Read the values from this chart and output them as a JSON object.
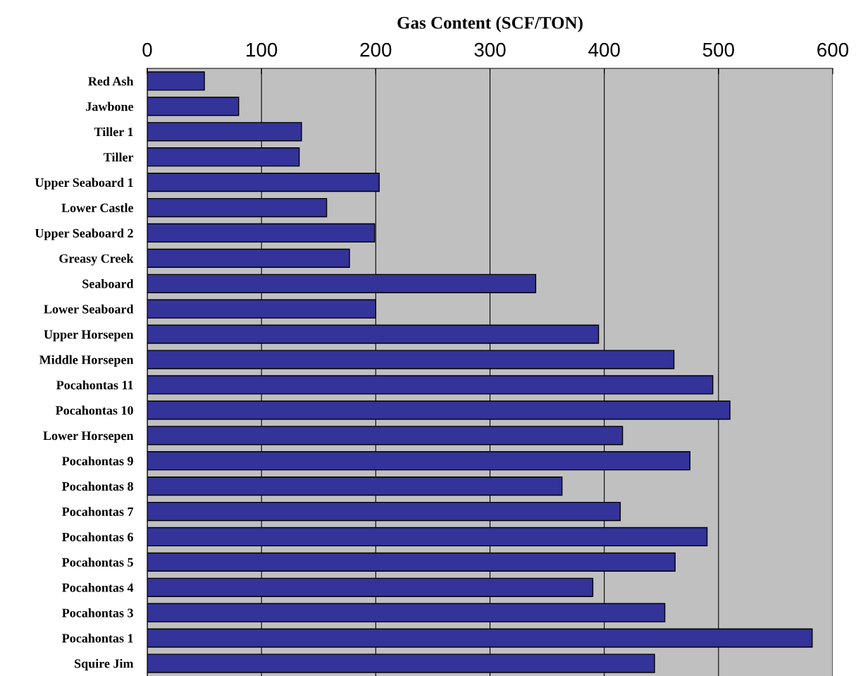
{
  "chart_data": {
    "type": "bar",
    "orientation": "horizontal",
    "xlabel": "Gas Content (SCF/TON)",
    "categories": [
      "Red Ash",
      "Jawbone",
      "Tiller 1",
      "Tiller",
      "Upper Seaboard 1",
      "Lower Castle",
      "Upper Seaboard 2",
      "Greasy Creek",
      "Seaboard",
      "Lower Seaboard",
      "Upper Horsepen",
      "Middle Horsepen",
      "Pocahontas 11",
      "Pocahontas 10",
      "Lower Horsepen",
      "Pocahontas 9",
      "Pocahontas 8",
      "Pocahontas 7",
      "Pocahontas 6",
      "Pocahontas 5",
      "Pocahontas 4",
      "Pocahontas 3",
      "Pocahontas 1",
      "Squire Jim"
    ],
    "values": [
      50,
      80,
      135,
      133,
      203,
      157,
      199,
      177,
      340,
      200,
      395,
      461,
      495,
      510,
      416,
      475,
      363,
      414,
      490,
      462,
      390,
      453,
      582,
      444
    ],
    "color": "#333399",
    "xlim": [
      0,
      600
    ],
    "xticks": [
      0,
      100,
      200,
      300,
      400,
      500,
      600
    ],
    "grid": "x"
  }
}
